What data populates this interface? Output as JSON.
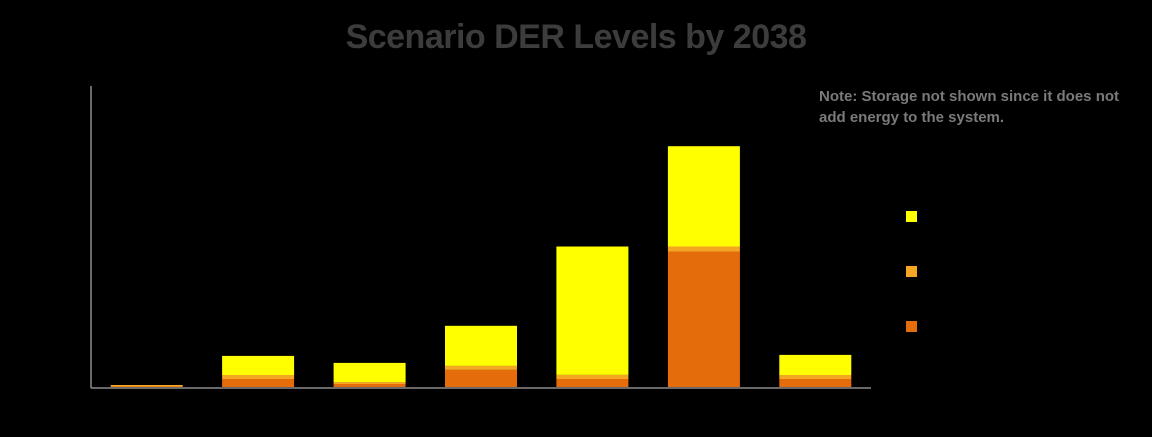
{
  "chart_data": {
    "type": "bar",
    "stacked": true,
    "title": "Scenario DER Levels by 2038",
    "note": "Note:  Storage not shown since it does not add energy to the system.",
    "categories": [
      "",
      "",
      "",
      "",
      "",
      "",
      ""
    ],
    "series": [
      {
        "color": "#e46c0a",
        "values": [
          0.5,
          8,
          3,
          17,
          8,
          135,
          8
        ]
      },
      {
        "color": "#f5a623",
        "values": [
          1.5,
          4,
          2,
          4,
          4,
          5,
          4
        ]
      },
      {
        "color": "#ffff00",
        "values": [
          0,
          19,
          19,
          40,
          128,
          100,
          20
        ]
      }
    ],
    "ylim": [
      0,
      300
    ],
    "grid": false,
    "legend": "right"
  }
}
